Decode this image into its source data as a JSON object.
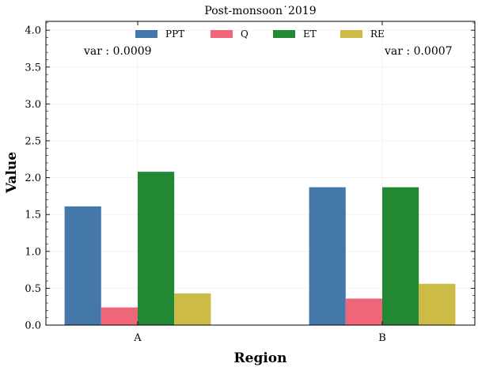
{
  "chart_data": {
    "type": "bar",
    "title": "Post-monsoon˙2019",
    "xlabel": "Region",
    "ylabel": "Value",
    "categories": [
      "A",
      "B"
    ],
    "series": [
      {
        "name": "PPT",
        "values": [
          1.61,
          1.87
        ],
        "color": "#4477aa"
      },
      {
        "name": "Q",
        "values": [
          0.24,
          0.36
        ],
        "color": "#ee6677"
      },
      {
        "name": "ET",
        "values": [
          2.08,
          1.87
        ],
        "color": "#228833"
      },
      {
        "name": "RE",
        "values": [
          0.43,
          0.56
        ],
        "color": "#ccbb44"
      }
    ],
    "ylim": [
      0,
      4.12
    ],
    "yticks": [
      "0.0",
      "0.5",
      "1.0",
      "1.5",
      "2.0",
      "2.5",
      "3.0",
      "3.5",
      "4.0"
    ],
    "ytick_values": [
      0,
      0.5,
      1.0,
      1.5,
      2.0,
      2.5,
      3.0,
      3.5,
      4.0
    ],
    "annotations": [
      "var : 0.0009",
      "var : 0.0007"
    ],
    "legend_position": "upper center",
    "grid": true
  }
}
